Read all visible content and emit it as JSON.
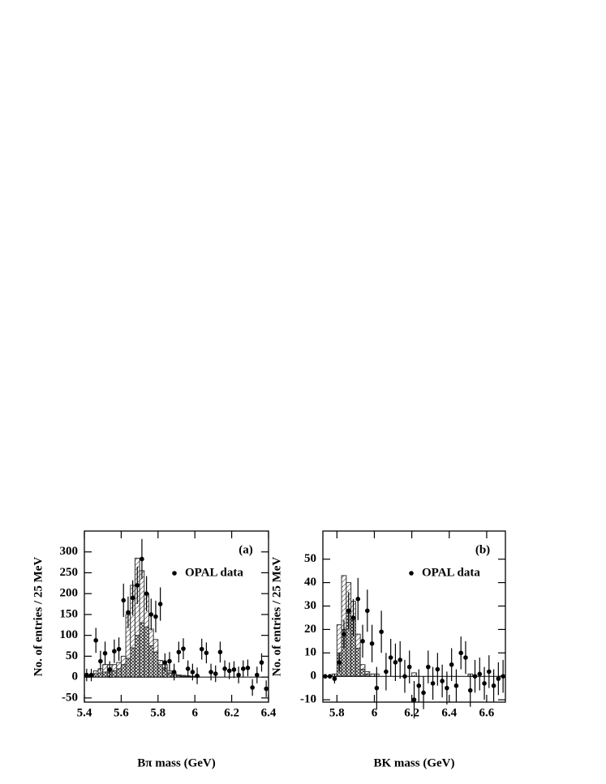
{
  "chart_data": [
    {
      "type": "histogram",
      "panel_label": "(a)",
      "xlabel": "Bπ mass (GeV)",
      "ylabel": "No. of entries / 25 MeV",
      "xlim": [
        5.4,
        6.4
      ],
      "ylim": [
        -60,
        350
      ],
      "xticks": [
        5.4,
        5.6,
        5.8,
        6,
        6.2,
        6.4
      ],
      "yticks": [
        -50,
        0,
        50,
        100,
        150,
        200,
        250,
        300
      ],
      "legend": "upper right",
      "bins": [
        5.4,
        5.425,
        5.45,
        5.475,
        5.5,
        5.525,
        5.55,
        5.575,
        5.6,
        5.625,
        5.65,
        5.675,
        5.7,
        5.725,
        5.75,
        5.775,
        5.8,
        5.825,
        5.85,
        5.875,
        5.9,
        5.925,
        5.95,
        5.975,
        6.0,
        6.025,
        6.05,
        6.075,
        6.1,
        6.125,
        6.15,
        6.175,
        6.2,
        6.225,
        6.25,
        6.275,
        6.3,
        6.325,
        6.35,
        6.375,
        6.4
      ],
      "series": [
        {
          "color": "#333333",
          "pattern": "crosshatch",
          "values": [
            3,
            3,
            8,
            10,
            12,
            12,
            15,
            20,
            30,
            45,
            70,
            100,
            130,
            120,
            75,
            60,
            30,
            22,
            10,
            5,
            3,
            2,
            2,
            1,
            1,
            0,
            0,
            0,
            0,
            0,
            0,
            0,
            0,
            0,
            0,
            0,
            0,
            0,
            0,
            0
          ]
        },
        {
          "color": "#333333",
          "pattern": "hatch",
          "values": [
            2,
            2,
            7,
            10,
            18,
            18,
            15,
            15,
            20,
            105,
            150,
            185,
            125,
            80,
            40,
            30,
            10,
            8,
            5,
            3,
            2,
            2,
            1,
            1,
            1,
            0,
            0,
            0,
            0,
            0,
            0,
            0,
            0,
            0,
            0,
            0,
            0,
            0,
            0,
            0
          ]
        }
      ],
      "points": {
        "name": "OPAL data",
        "color": "#000000",
        "values": [
          5,
          5,
          88,
          38,
          57,
          18,
          62,
          67,
          184,
          155,
          190,
          220,
          283,
          200,
          150,
          145,
          175,
          35,
          38,
          12,
          60,
          68,
          20,
          12,
          3,
          67,
          58,
          12,
          8,
          60,
          20,
          15,
          18,
          5,
          20,
          22,
          -25,
          5,
          35,
          -28
        ],
        "errors": [
          15,
          15,
          30,
          25,
          28,
          20,
          28,
          28,
          40,
          38,
          42,
          45,
          48,
          42,
          38,
          38,
          40,
          22,
          22,
          20,
          25,
          25,
          20,
          20,
          20,
          25,
          25,
          20,
          20,
          25,
          20,
          20,
          20,
          20,
          20,
          20,
          20,
          20,
          22,
          20
        ]
      }
    },
    {
      "type": "histogram",
      "panel_label": "(b)",
      "xlabel": "BK mass (GeV)",
      "ylabel": "No. of entries / 25 MeV",
      "xlim": [
        5.725,
        6.7
      ],
      "ylim": [
        -11,
        62
      ],
      "xticks": [
        5.8,
        6,
        6.2,
        6.4,
        6.6
      ],
      "yticks": [
        -10,
        0,
        10,
        20,
        30,
        40,
        50
      ],
      "legend": "upper right",
      "bins": [
        5.725,
        5.75,
        5.775,
        5.8,
        5.825,
        5.85,
        5.875,
        5.9,
        5.925,
        5.95,
        5.975,
        6.0,
        6.025,
        6.05,
        6.075,
        6.1,
        6.125,
        6.15,
        6.175,
        6.2,
        6.225,
        6.25,
        6.275,
        6.3,
        6.325,
        6.35,
        6.375,
        6.4,
        6.425,
        6.45,
        6.475,
        6.5,
        6.525,
        6.55,
        6.575,
        6.6,
        6.625,
        6.65,
        6.675,
        6.7
      ],
      "series": [
        {
          "color": "#333333",
          "pattern": "crosshatch",
          "values": [
            0,
            0,
            0,
            10,
            20,
            27,
            24,
            12,
            3,
            1,
            0,
            0,
            0,
            0,
            0,
            0,
            0,
            0,
            0,
            0,
            0,
            0,
            0,
            0,
            0,
            0,
            0,
            0,
            0,
            0,
            0,
            0,
            0,
            0,
            0,
            0,
            0,
            0,
            0
          ]
        },
        {
          "color": "#333333",
          "pattern": "hatch",
          "values": [
            0,
            0,
            1,
            12,
            23,
            13,
            8,
            6,
            2,
            1,
            1,
            1,
            0,
            0,
            0,
            0,
            0,
            0,
            0,
            1.5,
            0,
            0,
            0,
            0,
            0,
            0,
            0,
            0,
            0,
            0,
            0,
            1,
            0,
            0,
            0,
            0,
            0,
            0,
            0
          ]
        }
      ],
      "points": {
        "name": "OPAL data",
        "color": "#000000",
        "values": [
          0,
          0,
          -1,
          6,
          18,
          28,
          25,
          33,
          15,
          28,
          14,
          -5,
          19,
          2,
          8,
          6,
          7,
          0,
          4,
          -10,
          -4,
          -7,
          4,
          -3,
          3,
          -2,
          -5,
          5,
          -4,
          10,
          8,
          -6,
          0,
          1,
          -3,
          2,
          -4,
          -1,
          0
        ],
        "errors": [
          1,
          1,
          2,
          4,
          6,
          8,
          8,
          9,
          7,
          9,
          8,
          9,
          9,
          8,
          8,
          8,
          8,
          7,
          7,
          8,
          7,
          7,
          7,
          7,
          7,
          7,
          7,
          7,
          7,
          7,
          7,
          7,
          7,
          7,
          7,
          7,
          7,
          7,
          7
        ]
      }
    }
  ]
}
